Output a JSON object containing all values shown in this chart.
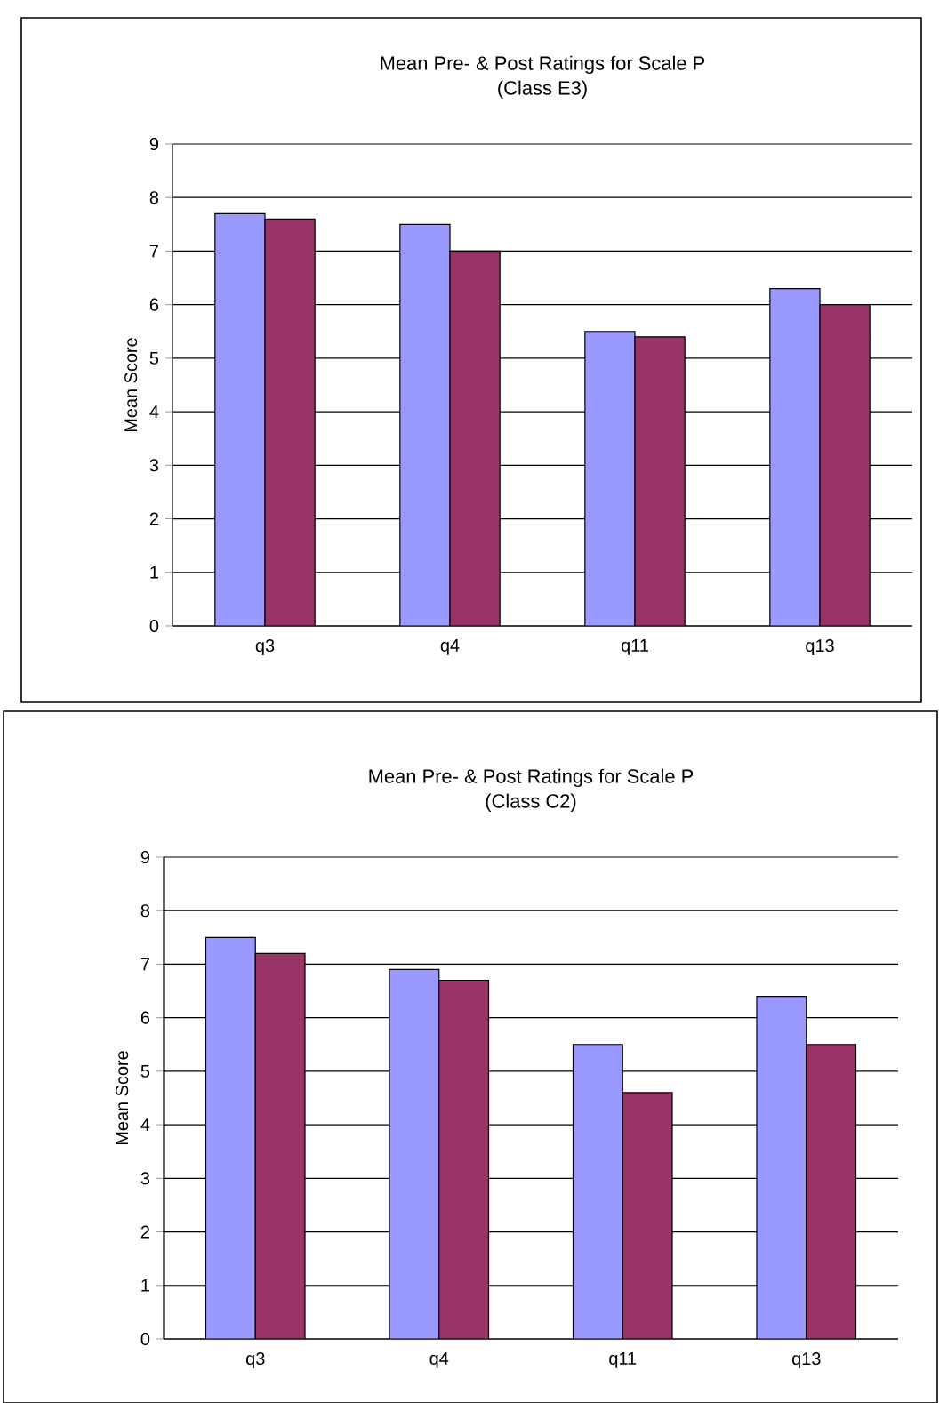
{
  "chart_data": [
    {
      "type": "bar",
      "title": "Mean Pre- & Post Ratings for Scale P",
      "subtitle": "(Class E3)",
      "ylabel": "Mean Score",
      "categories": [
        "q3",
        "q4",
        "q11",
        "q13"
      ],
      "series": [
        {
          "color": "#9999ff",
          "values": [
            7.7,
            7.5,
            5.5,
            6.3
          ]
        },
        {
          "color": "#993366",
          "values": [
            7.6,
            7.0,
            5.4,
            6.0
          ]
        }
      ],
      "ylim": [
        0,
        9
      ],
      "yticks": [
        0,
        1,
        2,
        3,
        4,
        5,
        6,
        7,
        8,
        9
      ],
      "grid": "y"
    },
    {
      "type": "bar",
      "title": "Mean Pre- & Post Ratings for Scale P",
      "subtitle": "(Class C2)",
      "ylabel": "Mean Score",
      "categories": [
        "q3",
        "q4",
        "q11",
        "q13"
      ],
      "series": [
        {
          "color": "#9999ff",
          "values": [
            7.5,
            6.9,
            5.5,
            6.4
          ]
        },
        {
          "color": "#993366",
          "values": [
            7.2,
            6.7,
            4.6,
            5.5
          ]
        }
      ],
      "ylim": [
        0,
        9
      ],
      "yticks": [
        0,
        1,
        2,
        3,
        4,
        5,
        6,
        7,
        8,
        9
      ],
      "grid": "y"
    }
  ]
}
